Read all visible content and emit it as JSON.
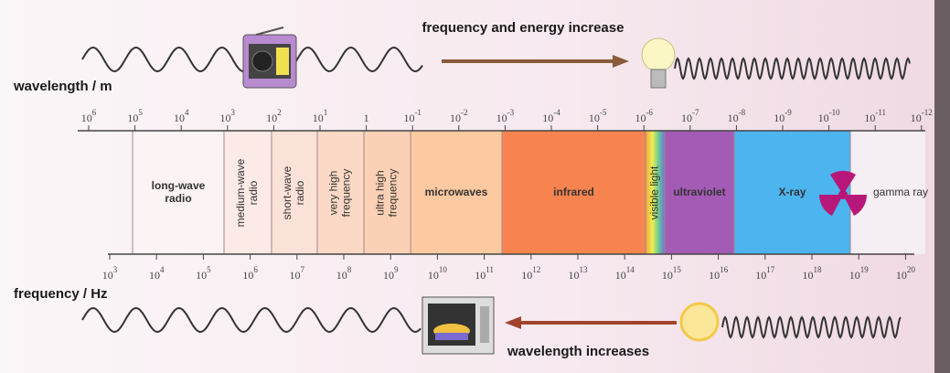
{
  "top_text": "frequency and energy increase",
  "bottom_text": "wavelength increases",
  "wavelength_axis": {
    "label": "wavelength / m",
    "ticks": [
      {
        "base": "10",
        "exp": "6"
      },
      {
        "base": "10",
        "exp": "5"
      },
      {
        "base": "10",
        "exp": "4"
      },
      {
        "base": "10",
        "exp": "3"
      },
      {
        "base": "10",
        "exp": "2"
      },
      {
        "base": "10",
        "exp": "1"
      },
      {
        "base": "1"
      },
      {
        "base": "10",
        "exp": "-1"
      },
      {
        "base": "10",
        "exp": "-2"
      },
      {
        "base": "10",
        "exp": "-3"
      },
      {
        "base": "10",
        "exp": "-4"
      },
      {
        "base": "10",
        "exp": "-5"
      },
      {
        "base": "10",
        "exp": "-6"
      },
      {
        "base": "10",
        "exp": "-7"
      },
      {
        "base": "10",
        "exp": "-8"
      },
      {
        "base": "10",
        "exp": "-9"
      },
      {
        "base": "10",
        "exp": "-10"
      },
      {
        "base": "10",
        "exp": "-11"
      },
      {
        "base": "10",
        "exp": "-12"
      }
    ]
  },
  "frequency_axis": {
    "label": "frequency / Hz",
    "ticks": [
      {
        "base": "10",
        "exp": "3"
      },
      {
        "base": "10",
        "exp": "4"
      },
      {
        "base": "10",
        "exp": "5"
      },
      {
        "base": "10",
        "exp": "6"
      },
      {
        "base": "10",
        "exp": "7"
      },
      {
        "base": "10",
        "exp": "8"
      },
      {
        "base": "10",
        "exp": "9"
      },
      {
        "base": "10",
        "exp": "10"
      },
      {
        "base": "10",
        "exp": "11"
      },
      {
        "base": "10",
        "exp": "12"
      },
      {
        "base": "10",
        "exp": "13"
      },
      {
        "base": "10",
        "exp": "14"
      },
      {
        "base": "10",
        "exp": "15"
      },
      {
        "base": "10",
        "exp": "16"
      },
      {
        "base": "10",
        "exp": "17"
      },
      {
        "base": "10",
        "exp": "18"
      },
      {
        "base": "10",
        "exp": "19"
      },
      {
        "base": "10",
        "exp": "20"
      }
    ]
  },
  "regions": [
    {
      "lines": [
        "long-wave",
        "radio"
      ],
      "color": "#fbf3f4",
      "rotated": false
    },
    {
      "lines": [
        "medium-wave",
        "radio"
      ],
      "color": "#fbeae6",
      "rotated": true
    },
    {
      "lines": [
        "short-wave",
        "radio"
      ],
      "color": "#fbe2d8",
      "rotated": true
    },
    {
      "lines": [
        "very high",
        "frequency"
      ],
      "color": "#fbd9c6",
      "rotated": true
    },
    {
      "lines": [
        "ultra high",
        "frequency"
      ],
      "color": "#fbd0b4",
      "rotated": true
    },
    {
      "lines": [
        "microwaves"
      ],
      "color": "#fcc9a0",
      "rotated": false
    },
    {
      "lines": [
        "infrared"
      ],
      "color": "#f7844f",
      "rotated": false
    },
    {
      "lines": [
        "visible light"
      ],
      "color": "#e9e35a",
      "rotated": true
    },
    {
      "lines": [
        "ultraviolet"
      ],
      "color": "#a45bb5",
      "rotated": false
    },
    {
      "lines": [
        "X-ray"
      ],
      "color": "#4cb4ee",
      "rotated": false
    },
    {
      "lines": [
        "gamma ray"
      ],
      "color": "#f5eef2",
      "rotated": false
    }
  ]
}
